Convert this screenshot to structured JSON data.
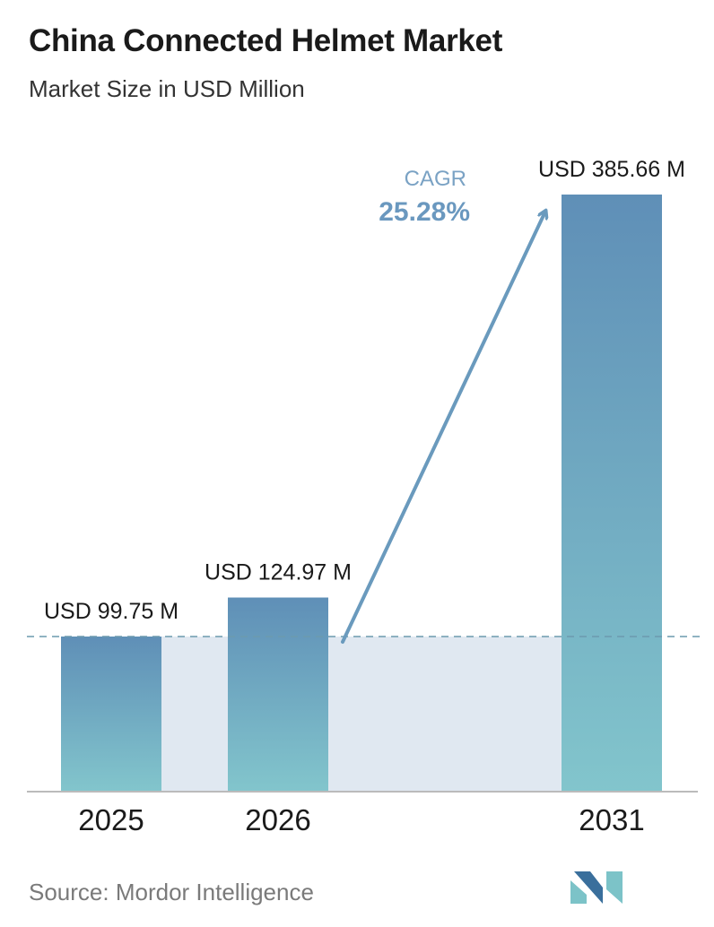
{
  "header": {
    "title": "China Connected Helmet Market",
    "subtitle": "Market Size in USD Million"
  },
  "footer": {
    "source": "Source: Mordor Intelligence"
  },
  "cagr": {
    "label": "CAGR",
    "value": "25.28%"
  },
  "colors": {
    "bar_top": "#5f8fb7",
    "bar_bottom": "#82c5cc",
    "band": "#e0e8f1",
    "arrow": "#6a9abd",
    "baseline_dash": "#6c9aae",
    "cagr_label": "#7aa2c4",
    "cagr_value": "#6a98bf",
    "logo_dark": "#3a6f9c",
    "logo_light": "#7cc3c8"
  },
  "chart_data": {
    "type": "bar",
    "categories": [
      "2025",
      "2026",
      "2031"
    ],
    "values": [
      99.75,
      124.97,
      385.66
    ],
    "value_labels": [
      "USD 99.75 M",
      "USD 124.97 M",
      "USD 385.66 M"
    ],
    "title": "China Connected Helmet Market",
    "subtitle": "Market Size in USD Million",
    "xlabel": "",
    "ylabel": "",
    "ylim": [
      0,
      385.66
    ],
    "grid": false,
    "annotations": [
      {
        "text": "CAGR 25.28%",
        "from": "2026",
        "to": "2031"
      }
    ]
  }
}
